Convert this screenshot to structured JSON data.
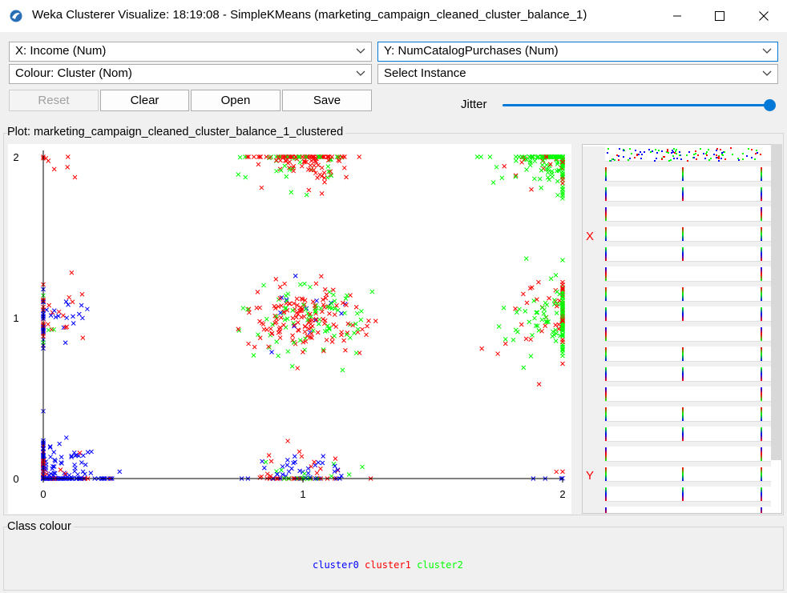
{
  "window": {
    "title": "Weka Clusterer Visualize: 18:19:08 - SimpleKMeans (marketing_campaign_cleaned_cluster_balance_1)"
  },
  "controls": {
    "x_axis": "X: Income (Num)",
    "y_axis": "Y: NumCatalogPurchases (Num)",
    "colour": "Colour: Cluster (Nom)",
    "instance": "Select Instance",
    "reset_label": "Reset",
    "clear_label": "Clear",
    "open_label": "Open",
    "save_label": "Save",
    "jitter_label": "Jitter",
    "jitter_value": 1.0
  },
  "plot": {
    "title": "Plot: marketing_campaign_cleaned_cluster_balance_1_clustered",
    "x_ticks": [
      "0",
      "1",
      "2"
    ],
    "y_ticks": [
      "0",
      "1",
      "2"
    ]
  },
  "matrix": {
    "x_marker": "X",
    "y_marker": "Y"
  },
  "legend": {
    "title": "Class colour",
    "items": [
      {
        "label": "cluster0",
        "color": "#0000ff"
      },
      {
        "label": "cluster1",
        "color": "#ff0000"
      },
      {
        "label": "cluster2",
        "color": "#00ff00"
      }
    ]
  },
  "chart_data": {
    "type": "scatter",
    "xlabel": "",
    "ylabel": "",
    "xlim": [
      0,
      2
    ],
    "ylim": [
      0,
      2
    ],
    "marker": "x",
    "clusters": [
      {
        "x": 0,
        "y": 0,
        "n": 260,
        "spread": 0.2,
        "colors": {
          "cluster0": 0.85,
          "cluster1": 0.15
        }
      },
      {
        "x": 0,
        "y": 1,
        "n": 70,
        "spread": 0.17,
        "colors": {
          "cluster0": 0.55,
          "cluster1": 0.4,
          "cluster2": 0.05
        }
      },
      {
        "x": 0,
        "y": 2,
        "n": 8,
        "spread": 0.15,
        "colors": {
          "cluster1": 1.0
        }
      },
      {
        "x": 1,
        "y": 0,
        "n": 90,
        "spread": 0.17,
        "colors": {
          "cluster0": 0.45,
          "cluster1": 0.35,
          "cluster2": 0.2
        }
      },
      {
        "x": 1,
        "y": 1,
        "n": 230,
        "spread": 0.2,
        "colors": {
          "cluster0": 0.08,
          "cluster1": 0.67,
          "cluster2": 0.25
        }
      },
      {
        "x": 1,
        "y": 2,
        "n": 140,
        "spread": 0.18,
        "colors": {
          "cluster1": 0.65,
          "cluster2": 0.35
        }
      },
      {
        "x": 2,
        "y": 0,
        "n": 6,
        "spread": 0.12,
        "colors": {
          "cluster0": 0.6,
          "cluster1": 0.2,
          "cluster2": 0.2
        }
      },
      {
        "x": 2,
        "y": 1,
        "n": 170,
        "spread": 0.2,
        "colors": {
          "cluster1": 0.35,
          "cluster2": 0.65
        }
      },
      {
        "x": 2,
        "y": 2,
        "n": 220,
        "spread": 0.19,
        "colors": {
          "cluster1": 0.2,
          "cluster2": 0.8
        }
      }
    ]
  }
}
